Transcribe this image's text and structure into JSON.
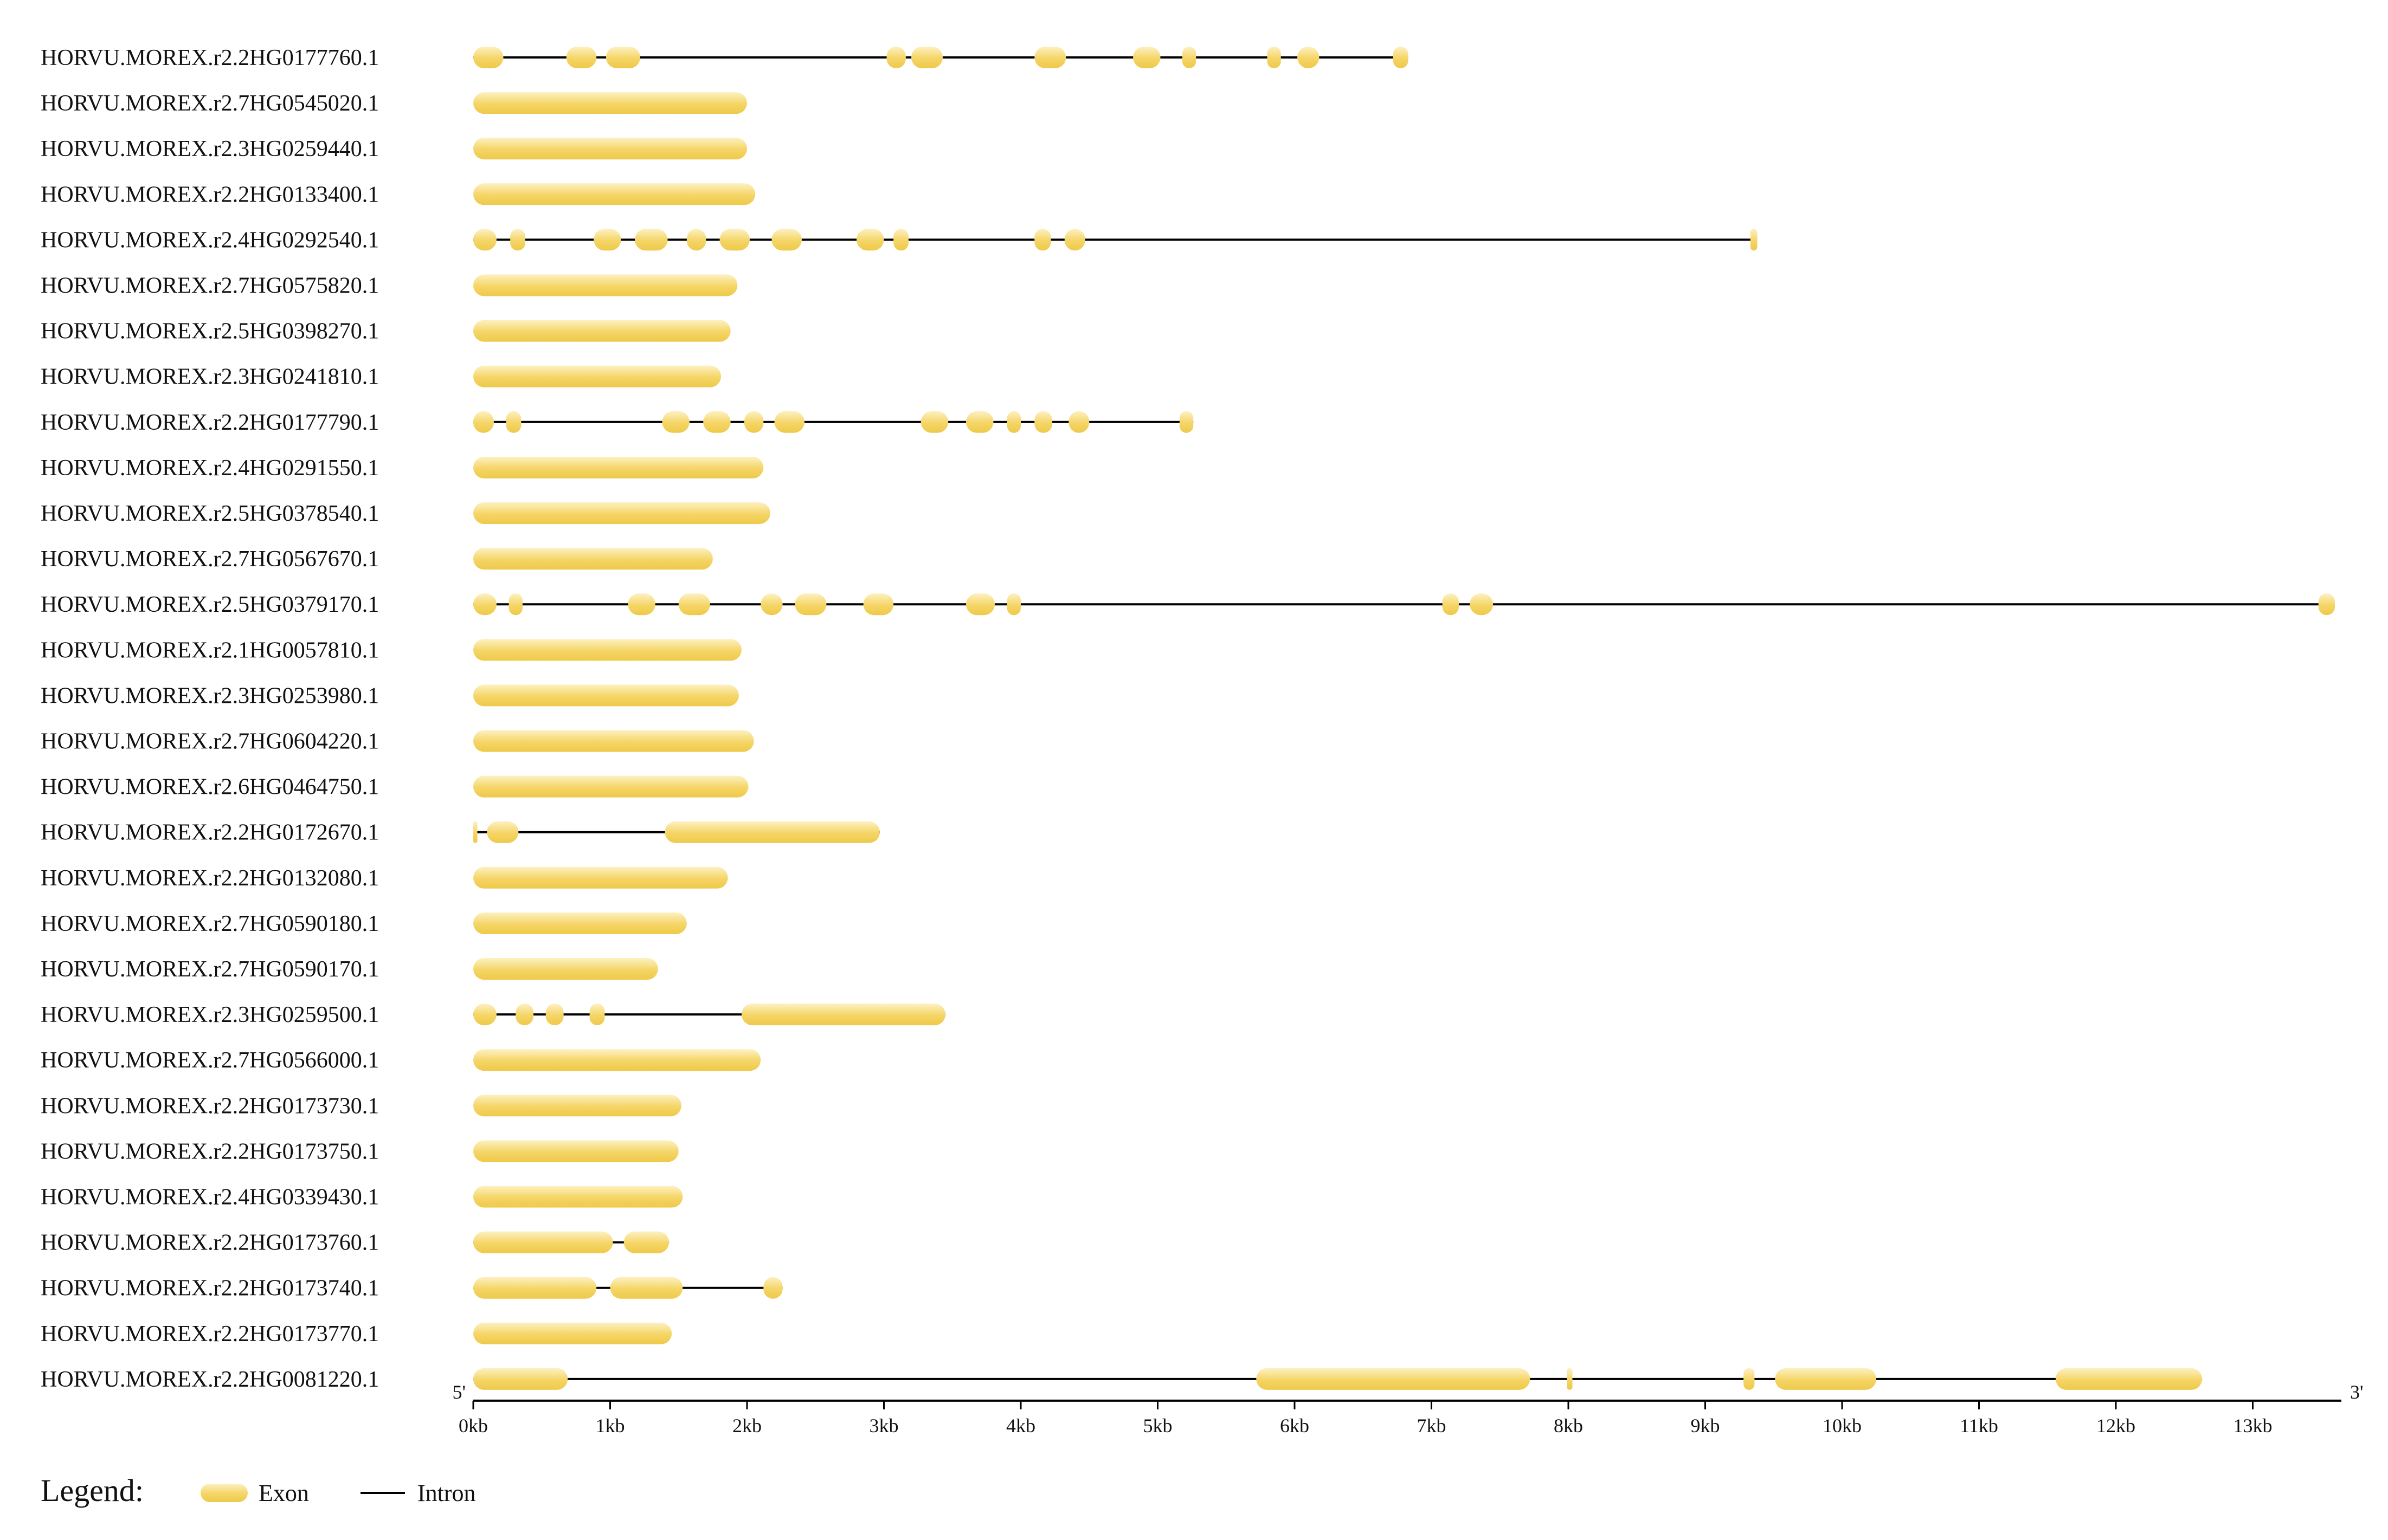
{
  "figure": {
    "five_prime": "5'",
    "three_prime": "3'",
    "scale": {
      "min_kb": 0,
      "max_kb": 13.6
    },
    "ticks": [
      "0kb",
      "1kb",
      "2kb",
      "3kb",
      "4kb",
      "5kb",
      "6kb",
      "7kb",
      "8kb",
      "9kb",
      "10kb",
      "11kb",
      "12kb",
      "13kb"
    ],
    "colors": {
      "exon_light": "#fbe8a0",
      "exon_dark": "#f2cf55",
      "intron": "#000000"
    },
    "legend": {
      "title": "Legend:",
      "items": [
        {
          "label": "Exon",
          "kind": "exon"
        },
        {
          "label": "Intron",
          "kind": "intron"
        }
      ]
    }
  },
  "genes": [
    {
      "id": "HORVU.MOREX.r2.2HG0177760.1",
      "exons": [
        [
          0,
          0.22
        ],
        [
          0.68,
          0.9
        ],
        [
          0.97,
          1.22
        ],
        [
          3.02,
          3.16
        ],
        [
          3.2,
          3.43
        ],
        [
          4.1,
          4.33
        ],
        [
          4.82,
          5.02
        ],
        [
          5.18,
          5.28
        ],
        [
          5.8,
          5.9
        ],
        [
          6.02,
          6.18
        ],
        [
          6.72,
          6.83
        ]
      ]
    },
    {
      "id": "HORVU.MOREX.r2.7HG0545020.1",
      "exons": [
        [
          0,
          2.0
        ]
      ]
    },
    {
      "id": "HORVU.MOREX.r2.3HG0259440.1",
      "exons": [
        [
          0,
          2.0
        ]
      ]
    },
    {
      "id": "HORVU.MOREX.r2.2HG0133400.1",
      "exons": [
        [
          0,
          2.06
        ]
      ]
    },
    {
      "id": "HORVU.MOREX.r2.4HG0292540.1",
      "exons": [
        [
          0,
          0.17
        ],
        [
          0.27,
          0.38
        ],
        [
          0.88,
          1.08
        ],
        [
          1.18,
          1.42
        ],
        [
          1.56,
          1.7
        ],
        [
          1.8,
          2.02
        ],
        [
          2.18,
          2.4
        ],
        [
          2.8,
          3.0
        ],
        [
          3.07,
          3.18
        ],
        [
          4.1,
          4.22
        ],
        [
          4.32,
          4.47
        ],
        [
          9.33,
          9.38
        ]
      ]
    },
    {
      "id": "HORVU.MOREX.r2.7HG0575820.1",
      "exons": [
        [
          0,
          1.93
        ]
      ]
    },
    {
      "id": "HORVU.MOREX.r2.5HG0398270.1",
      "exons": [
        [
          0,
          1.88
        ]
      ]
    },
    {
      "id": "HORVU.MOREX.r2.3HG0241810.1",
      "exons": [
        [
          0,
          1.81
        ]
      ]
    },
    {
      "id": "HORVU.MOREX.r2.2HG0177790.1",
      "exons": [
        [
          0,
          0.15
        ],
        [
          0.24,
          0.35
        ],
        [
          1.38,
          1.58
        ],
        [
          1.68,
          1.88
        ],
        [
          1.98,
          2.12
        ],
        [
          2.2,
          2.42
        ],
        [
          3.27,
          3.47
        ],
        [
          3.6,
          3.8
        ],
        [
          3.9,
          4.0
        ],
        [
          4.1,
          4.23
        ],
        [
          4.35,
          4.5
        ],
        [
          5.16,
          5.26
        ]
      ]
    },
    {
      "id": "HORVU.MOREX.r2.4HG0291550.1",
      "exons": [
        [
          0,
          2.12
        ]
      ]
    },
    {
      "id": "HORVU.MOREX.r2.5HG0378540.1",
      "exons": [
        [
          0,
          2.17
        ]
      ]
    },
    {
      "id": "HORVU.MOREX.r2.7HG0567670.1",
      "exons": [
        [
          0,
          1.75
        ]
      ]
    },
    {
      "id": "HORVU.MOREX.r2.5HG0379170.1",
      "exons": [
        [
          0,
          0.17
        ],
        [
          0.26,
          0.36
        ],
        [
          1.13,
          1.33
        ],
        [
          1.5,
          1.73
        ],
        [
          2.1,
          2.26
        ],
        [
          2.35,
          2.58
        ],
        [
          2.85,
          3.07
        ],
        [
          3.6,
          3.81
        ],
        [
          3.9,
          4.0
        ],
        [
          7.08,
          7.2
        ],
        [
          7.28,
          7.45
        ],
        [
          13.48,
          13.6
        ]
      ]
    },
    {
      "id": "HORVU.MOREX.r2.1HG0057810.1",
      "exons": [
        [
          0,
          1.96
        ]
      ]
    },
    {
      "id": "HORVU.MOREX.r2.3HG0253980.1",
      "exons": [
        [
          0,
          1.94
        ]
      ]
    },
    {
      "id": "HORVU.MOREX.r2.7HG0604220.1",
      "exons": [
        [
          0,
          2.05
        ]
      ]
    },
    {
      "id": "HORVU.MOREX.r2.6HG0464750.1",
      "exons": [
        [
          0,
          2.01
        ]
      ]
    },
    {
      "id": "HORVU.MOREX.r2.2HG0172670.1",
      "exons": [
        [
          0,
          0.03
        ],
        [
          0.1,
          0.33
        ],
        [
          1.4,
          2.97
        ]
      ]
    },
    {
      "id": "HORVU.MOREX.r2.2HG0132080.1",
      "exons": [
        [
          0,
          1.86
        ]
      ]
    },
    {
      "id": "HORVU.MOREX.r2.7HG0590180.1",
      "exons": [
        [
          0,
          1.56
        ]
      ]
    },
    {
      "id": "HORVU.MOREX.r2.7HG0590170.1",
      "exons": [
        [
          0,
          1.35
        ]
      ]
    },
    {
      "id": "HORVU.MOREX.r2.3HG0259500.1",
      "exons": [
        [
          0,
          0.17
        ],
        [
          0.31,
          0.44
        ],
        [
          0.53,
          0.66
        ],
        [
          0.85,
          0.96
        ],
        [
          1.96,
          3.45
        ]
      ]
    },
    {
      "id": "HORVU.MOREX.r2.7HG0566000.1",
      "exons": [
        [
          0,
          2.1
        ]
      ]
    },
    {
      "id": "HORVU.MOREX.r2.2HG0173730.1",
      "exons": [
        [
          0,
          1.52
        ]
      ]
    },
    {
      "id": "HORVU.MOREX.r2.2HG0173750.1",
      "exons": [
        [
          0,
          1.5
        ]
      ]
    },
    {
      "id": "HORVU.MOREX.r2.4HG0339430.1",
      "exons": [
        [
          0,
          1.53
        ]
      ]
    },
    {
      "id": "HORVU.MOREX.r2.2HG0173760.1",
      "exons": [
        [
          0,
          1.02
        ],
        [
          1.1,
          1.43
        ]
      ]
    },
    {
      "id": "HORVU.MOREX.r2.2HG0173740.1",
      "exons": [
        [
          0,
          0.9
        ],
        [
          1.0,
          1.53
        ],
        [
          2.12,
          2.26
        ]
      ]
    },
    {
      "id": "HORVU.MOREX.r2.2HG0173770.1",
      "exons": [
        [
          0,
          1.45
        ]
      ]
    },
    {
      "id": "HORVU.MOREX.r2.2HG0081220.1",
      "exons": [
        [
          0,
          0.69
        ],
        [
          5.72,
          7.72
        ],
        [
          7.99,
          8.03
        ],
        [
          9.28,
          9.36
        ],
        [
          9.51,
          10.25
        ],
        [
          11.56,
          12.63
        ]
      ]
    }
  ]
}
